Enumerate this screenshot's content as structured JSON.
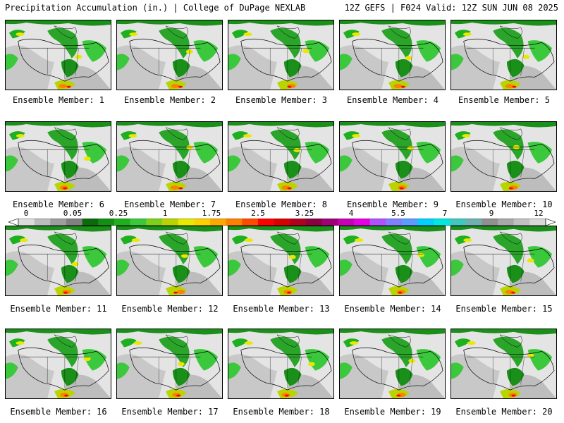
{
  "header": {
    "title_left": "Precipitation Accumulation (in.) | College of DuPage NEXLAB",
    "title_right": "12Z GEFS | F024 Valid: 12Z SUN JUN 08 2025"
  },
  "members": [
    "Ensemble Member: 1",
    "Ensemble Member: 2",
    "Ensemble Member: 3",
    "Ensemble Member: 4",
    "Ensemble Member: 5",
    "Ensemble Member: 6",
    "Ensemble Member: 7",
    "Ensemble Member: 8",
    "Ensemble Member: 9",
    "Ensemble Member: 10",
    "Ensemble Member: 11",
    "Ensemble Member: 12",
    "Ensemble Member: 13",
    "Ensemble Member: 14",
    "Ensemble Member: 15",
    "Ensemble Member: 16",
    "Ensemble Member: 17",
    "Ensemble Member: 18",
    "Ensemble Member: 19",
    "Ensemble Member: 20"
  ],
  "colorbar": {
    "tick_labels": [
      "0",
      "0.05",
      "0.25",
      "1",
      "1.75",
      "2.5",
      "3.25",
      "4",
      "5.5",
      "7",
      "9",
      "12"
    ],
    "colors": [
      "#dcdcdc",
      "#bdbdbd",
      "#9e9e9e",
      "#808080",
      "#0a6b0a",
      "#138f13",
      "#1fb01f",
      "#3cc83c",
      "#7cd11a",
      "#b9d400",
      "#e8e800",
      "#ffd000",
      "#ffa800",
      "#ff7f00",
      "#ff4a00",
      "#ff0000",
      "#d80000",
      "#b00020",
      "#8b0040",
      "#a00078",
      "#c800b4",
      "#e600e6",
      "#b050ff",
      "#8080ff",
      "#5a9cff",
      "#00d0ff",
      "#00e8e0",
      "#40c8c0",
      "#70b0b0",
      "#909090",
      "#a8a8a8",
      "#c0c0c0",
      "#d8d8d8"
    ]
  }
}
